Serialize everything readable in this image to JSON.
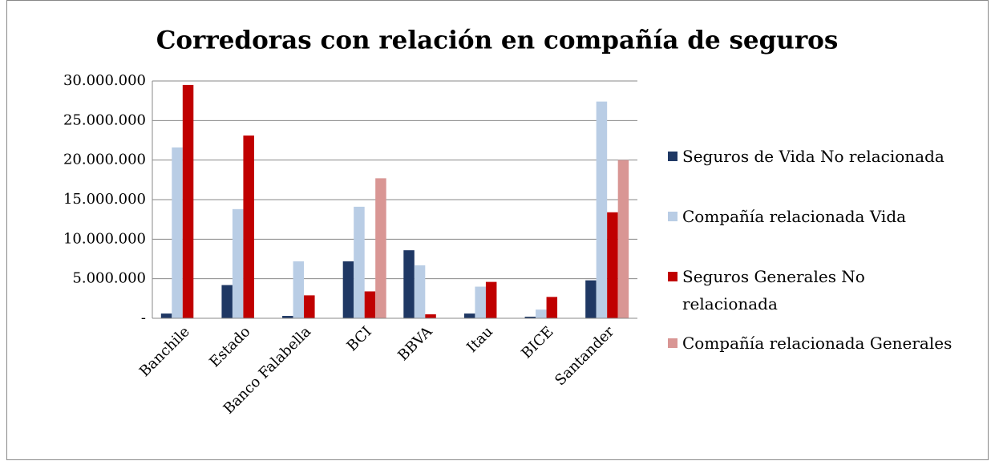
{
  "chart_data": {
    "type": "bar",
    "title": "Corredoras con relación en compañía de seguros",
    "categories": [
      "Banchile",
      "Estado",
      "Banco Falabella",
      "BCI",
      "BBVA",
      "Itau",
      "BICE",
      "Santander"
    ],
    "series": [
      {
        "name": "Seguros de Vida No relacionada",
        "color": "#1f3864",
        "values": [
          600000,
          4200000,
          300000,
          7200000,
          8600000,
          600000,
          200000,
          4800000
        ]
      },
      {
        "name": "Compañía relacionada Vida",
        "color": "#b9cde5",
        "values": [
          21600000,
          13800000,
          7200000,
          14100000,
          6700000,
          4000000,
          1100000,
          27400000
        ]
      },
      {
        "name": "Seguros Generales No relacionada",
        "color": "#c00000",
        "values": [
          29500000,
          23100000,
          2900000,
          3400000,
          500000,
          4600000,
          2700000,
          13400000
        ]
      },
      {
        "name": "Compañía relacionada Generales",
        "color": "#d99694",
        "values": [
          0,
          0,
          0,
          17700000,
          0,
          0,
          0,
          20000000
        ]
      }
    ],
    "ylim": [
      0,
      30000000
    ],
    "yticks": [
      {
        "value": 0,
        "label": "-"
      },
      {
        "value": 5000000,
        "label": "5.000.000"
      },
      {
        "value": 10000000,
        "label": "10.000.000"
      },
      {
        "value": 15000000,
        "label": "15.000.000"
      },
      {
        "value": 20000000,
        "label": "20.000.000"
      },
      {
        "value": 25000000,
        "label": "25.000.000"
      },
      {
        "value": 30000000,
        "label": "30.000.000"
      }
    ],
    "grid": true,
    "legend": "right"
  }
}
